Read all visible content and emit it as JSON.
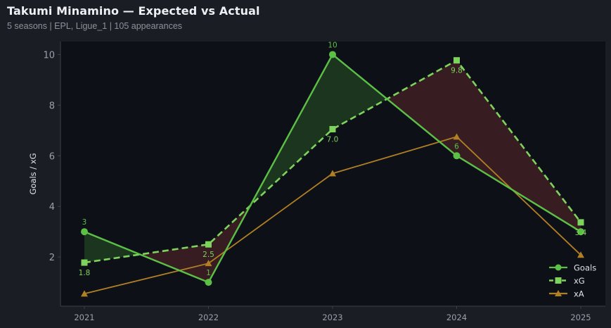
{
  "header": {
    "title": "Takumi Minamino — Expected vs Actual",
    "subtitle": "5 seasons | EPL, Ligue_1 | 105 appearances"
  },
  "chart_data": {
    "type": "line",
    "title": "Takumi Minamino — Expected vs Actual",
    "subtitle": "5 seasons | EPL, Ligue_1 | 105 appearances",
    "xlabel": "",
    "ylabel": "Goals / xG",
    "categories": [
      "2021",
      "2022",
      "2023",
      "2024",
      "2025"
    ],
    "ylim": [
      0.4,
      10.5
    ],
    "yticks": [
      2,
      4,
      6,
      8,
      10
    ],
    "grid": false,
    "legend_position": "bottom-right",
    "series": [
      {
        "name": "Goals",
        "values": [
          3,
          1,
          10,
          6,
          3
        ],
        "labels": [
          "3",
          "1",
          "10",
          "6",
          ""
        ],
        "color": "#5cc046",
        "marker": "circle",
        "dash": "solid"
      },
      {
        "name": "xG",
        "values": [
          1.78,
          2.5,
          7.05,
          9.77,
          3.37
        ],
        "labels": [
          "1.8",
          "2.5",
          "7.0",
          "9.8",
          "3.4"
        ],
        "color": "#7ed35c",
        "marker": "square",
        "dash": "dashed"
      },
      {
        "name": "xA",
        "values": [
          0.55,
          1.75,
          5.3,
          6.75,
          2.08
        ],
        "labels": [],
        "color": "#b07f24",
        "marker": "triangle",
        "dash": "solid"
      }
    ],
    "fill_colors": {
      "over": "#1c3820",
      "under": "#3a1e22"
    },
    "colors": {
      "page_background": "#1a1d24",
      "plot_background": "#0d1017",
      "axis": "#3b404a",
      "tick_label": "#9aa0ab",
      "axis_label": "#dfe3ea",
      "legend_text": "#dfe3ea"
    }
  }
}
